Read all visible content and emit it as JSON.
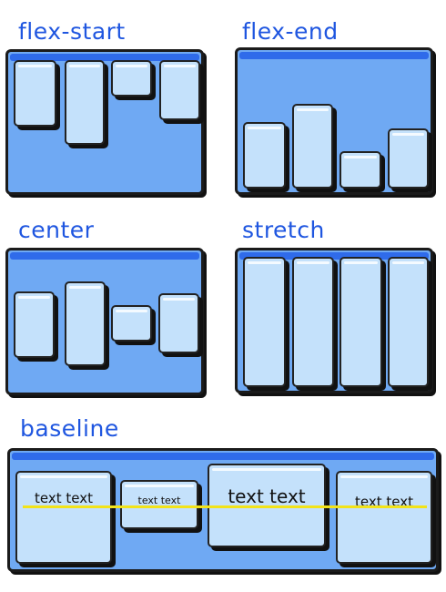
{
  "panels": {
    "flex_start": {
      "label": "flex-start"
    },
    "flex_end": {
      "label": "flex-end"
    },
    "center": {
      "label": "center"
    },
    "stretch": {
      "label": "stretch"
    },
    "baseline": {
      "label": "baseline",
      "items": [
        "text text",
        "text text",
        "text text",
        "text text"
      ]
    }
  },
  "colors": {
    "label_text": "#1f56e0",
    "container_fill": "#6fa9f3",
    "container_top_band": "#2f6bea",
    "item_fill": "#c4e1fb",
    "baseline_line": "#f2e319"
  }
}
